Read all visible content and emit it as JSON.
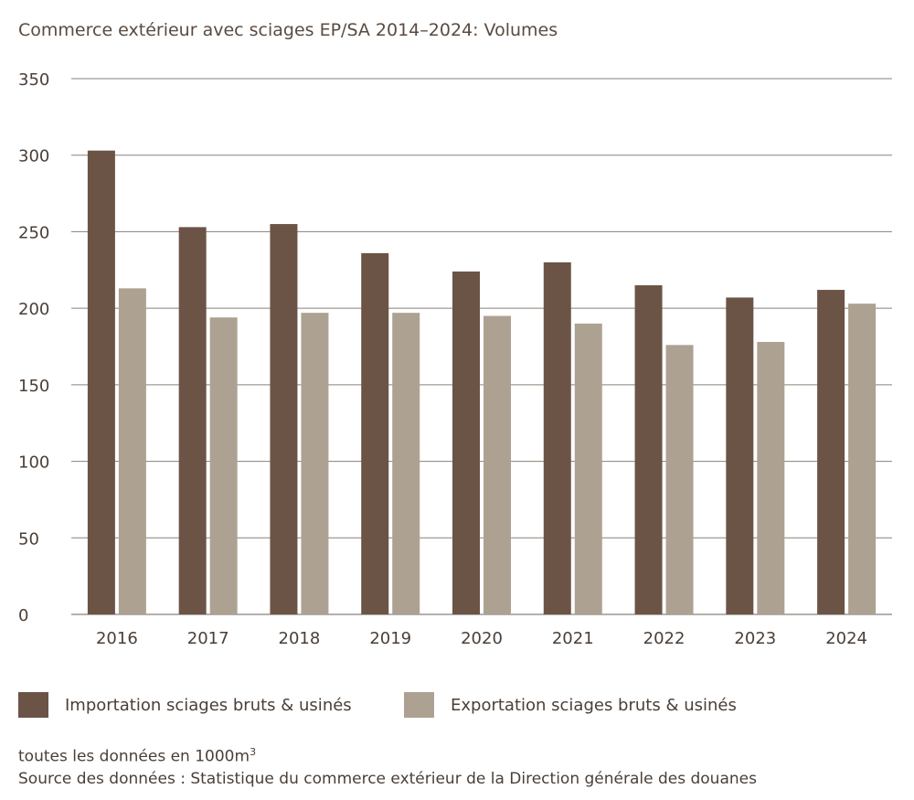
{
  "chart_data": {
    "type": "bar",
    "title": "Commerce extérieur avec sciages EP/SA 2014–2024: Volumes",
    "categories": [
      "2016",
      "2017",
      "2018",
      "2019",
      "2020",
      "2021",
      "2022",
      "2023",
      "2024"
    ],
    "series": [
      {
        "name": "Importation sciages bruts & usinés",
        "color": "#6b5446",
        "values": [
          303,
          253,
          255,
          236,
          224,
          230,
          215,
          207,
          212
        ]
      },
      {
        "name": "Exportation sciages bruts & usinés",
        "color": "#ada292",
        "values": [
          213,
          194,
          197,
          197,
          195,
          190,
          176,
          178,
          203
        ]
      }
    ],
    "ylim": [
      0,
      350
    ],
    "yticks": [
      0,
      50,
      100,
      150,
      200,
      250,
      300,
      350
    ],
    "grid": true,
    "legend": "bottom-left",
    "xlabel": "",
    "ylabel": ""
  },
  "notes": {
    "unit_prefix": "toutes les données en 1000m",
    "unit_sup": "3",
    "source": "Source des données : Statistique du commerce extérieur de la Direction générale des douanes"
  }
}
